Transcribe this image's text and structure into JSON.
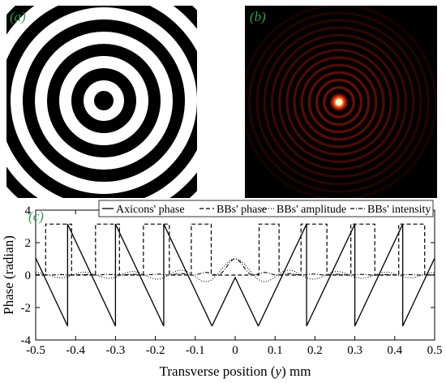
{
  "panels": {
    "a": {
      "letter": "(a)",
      "description_icon": "concentric-rings-phase-mask"
    },
    "b": {
      "letter": "(b)",
      "description_icon": "bessel-beam-intensity"
    },
    "c": {
      "letter": "(c)"
    }
  },
  "colors": {
    "panel_letter": "#2e9e57",
    "ring_dark": "#000000",
    "ring_light": "#ffffff",
    "beam_core": "#ffe07a",
    "beam_ring": "#8a0b00"
  },
  "chart_data": {
    "type": "line",
    "xlabel_prefix": "Transverse position (",
    "xlabel_var": "y",
    "xlabel_suffix": ") mm",
    "ylabel": "Phase (radian)",
    "xlim": [
      -0.5,
      0.5
    ],
    "ylim": [
      -4,
      4
    ],
    "x_ticks": [
      "-0.5",
      "-0.4",
      "-0.3",
      "-0.2",
      "-0.1",
      "0",
      "0.1",
      "0.2",
      "0.3",
      "0.4",
      "0.5"
    ],
    "y_ticks": [
      "4",
      "2",
      "0",
      "-2",
      "-4"
    ],
    "legend_position": "top",
    "series": [
      {
        "name": "Axicons' phase",
        "style": "solid",
        "wrap_period": 0.121,
        "range": [
          -3.1416,
          3.1416
        ]
      },
      {
        "name": "BBs' phase",
        "style": "dashed",
        "values_high": 3.1416,
        "values_low": 0
      },
      {
        "name": "BBs' amplitude",
        "style": "dotted",
        "peak": 1.0
      },
      {
        "name": "BBs' intensity",
        "style": "dashdot",
        "peak": 1.0
      }
    ]
  }
}
